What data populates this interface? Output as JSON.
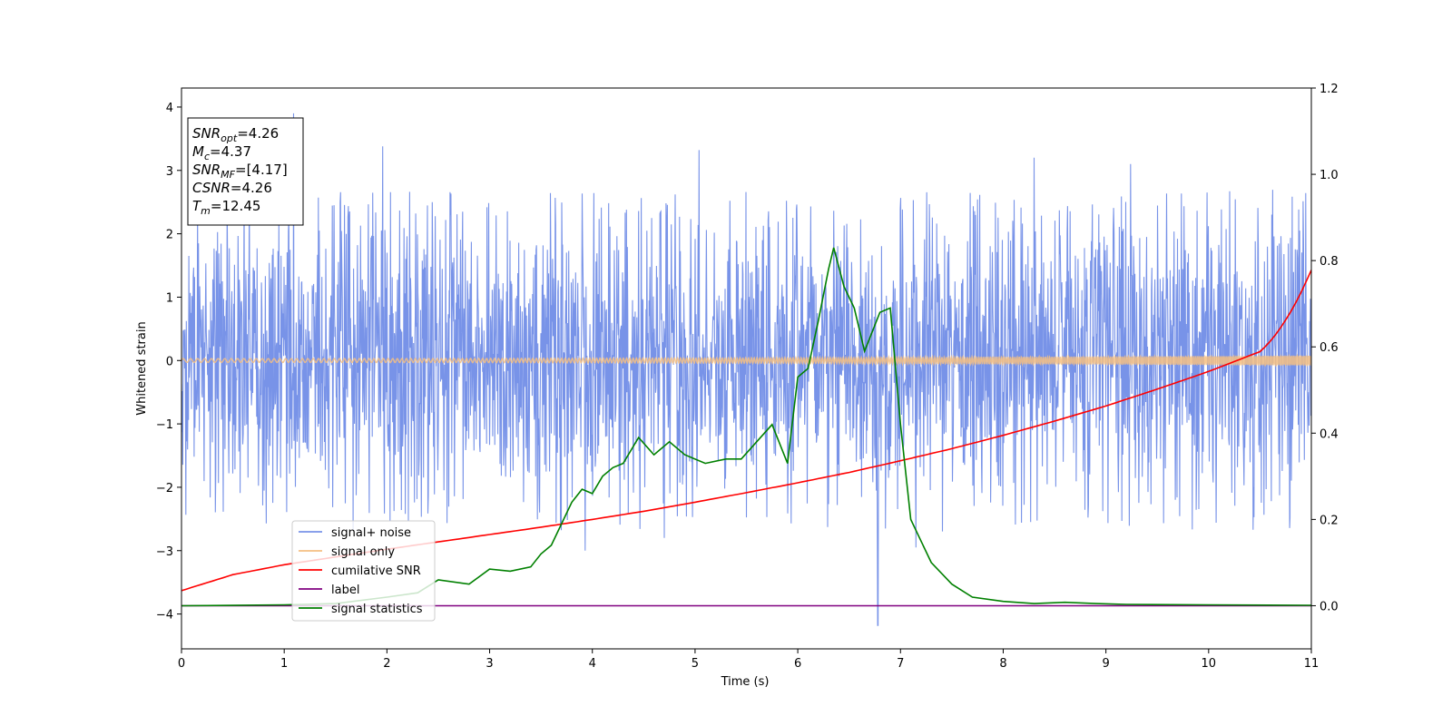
{
  "chart_data": {
    "type": "line",
    "xlabel": "Time (s)",
    "ylabel": "Whitened strain",
    "xlim": [
      0,
      11
    ],
    "ylim": [
      -4.55,
      4.3
    ],
    "y2lim": [
      -0.1,
      1.2
    ],
    "x_ticks": [
      "0",
      "1",
      "2",
      "3",
      "4",
      "5",
      "6",
      "7",
      "8",
      "9",
      "10",
      "11"
    ],
    "y_ticks": [
      "4",
      "3",
      "2",
      "1",
      "0",
      "−1",
      "−2",
      "−3",
      "−4"
    ],
    "y_tick_values": [
      4,
      3,
      2,
      1,
      0,
      -1,
      -2,
      -3,
      -4
    ],
    "y2_ticks": [
      "1.2",
      "1.0",
      "0.8",
      "0.6",
      "0.4",
      "0.2",
      "0.0"
    ],
    "y2_tick_values": [
      1.2,
      1.0,
      0.8,
      0.6,
      0.4,
      0.2,
      0.0
    ],
    "grid": false,
    "legend_position": "lower-left",
    "info_box": [
      {
        "base": "SNR",
        "sub": "opt",
        "value": "=4.26"
      },
      {
        "base": "M",
        "sub": "c",
        "value": "=4.37"
      },
      {
        "base": "SNR",
        "sub": "MF",
        "value": "=[4.17]"
      },
      {
        "base": "CSNR",
        "sub": "",
        "value": "=4.26"
      },
      {
        "base": "T",
        "sub": "m",
        "value": "=12.45"
      }
    ],
    "series": [
      {
        "name": "signal+ noise",
        "color": "#7893e8",
        "axis": "left",
        "kind": "noise",
        "envelope_typical": 2.0,
        "peaks": [
          {
            "x": 1.09,
            "y": 3.9
          },
          {
            "x": 1.96,
            "y": 3.38
          },
          {
            "x": 5.04,
            "y": 3.32
          },
          {
            "x": 8.3,
            "y": 3.2
          },
          {
            "x": 9.24,
            "y": 3.1
          },
          {
            "x": 6.78,
            "y": -4.18
          },
          {
            "x": 3.93,
            "y": -3.0
          },
          {
            "x": 7.15,
            "y": -2.95
          },
          {
            "x": 4.7,
            "y": -2.8
          }
        ]
      },
      {
        "name": "signal only",
        "color": "#f5bf82",
        "axis": "left",
        "amplitude_start": 0.03,
        "amplitude_end": 0.08
      },
      {
        "name": "cumilative SNR",
        "color": "#ff0000",
        "axis": "right",
        "x": [
          0,
          0.5,
          1,
          1.5,
          2,
          2.5,
          3,
          3.5,
          4,
          4.5,
          5,
          5.5,
          6,
          6.5,
          7,
          7.5,
          8,
          8.5,
          9,
          9.5,
          10,
          10.5,
          11
        ],
        "y": [
          0.035,
          0.072,
          0.095,
          0.113,
          0.131,
          0.148,
          0.165,
          0.182,
          0.2,
          0.219,
          0.24,
          0.262,
          0.285,
          0.309,
          0.336,
          0.364,
          0.395,
          0.428,
          0.463,
          0.502,
          0.543,
          0.589,
          0.778
        ]
      },
      {
        "name": "label",
        "color": "#800080",
        "axis": "right",
        "x": [
          0,
          11
        ],
        "y": [
          0.0,
          0.0
        ]
      },
      {
        "name": "signal statistics",
        "color": "#008000",
        "axis": "right",
        "x": [
          0,
          1,
          1.5,
          2.0,
          2.3,
          2.5,
          2.8,
          3.0,
          3.2,
          3.4,
          3.5,
          3.6,
          3.7,
          3.8,
          3.9,
          4.0,
          4.1,
          4.2,
          4.3,
          4.45,
          4.6,
          4.75,
          4.9,
          5.1,
          5.3,
          5.45,
          5.6,
          5.75,
          5.9,
          6.0,
          6.1,
          6.2,
          6.3,
          6.35,
          6.45,
          6.55,
          6.65,
          6.8,
          6.9,
          7.0,
          7.1,
          7.3,
          7.5,
          7.7,
          8.0,
          8.3,
          8.6,
          8.9,
          9.2,
          10.0,
          11.0
        ],
        "y": [
          0.0,
          0.002,
          0.005,
          0.02,
          0.03,
          0.06,
          0.05,
          0.085,
          0.08,
          0.09,
          0.12,
          0.14,
          0.19,
          0.24,
          0.27,
          0.26,
          0.3,
          0.32,
          0.33,
          0.39,
          0.35,
          0.38,
          0.35,
          0.33,
          0.34,
          0.34,
          0.38,
          0.42,
          0.33,
          0.53,
          0.55,
          0.66,
          0.78,
          0.83,
          0.74,
          0.69,
          0.59,
          0.68,
          0.69,
          0.42,
          0.2,
          0.1,
          0.05,
          0.02,
          0.01,
          0.005,
          0.008,
          0.005,
          0.003,
          0.002,
          0.001
        ]
      }
    ]
  }
}
